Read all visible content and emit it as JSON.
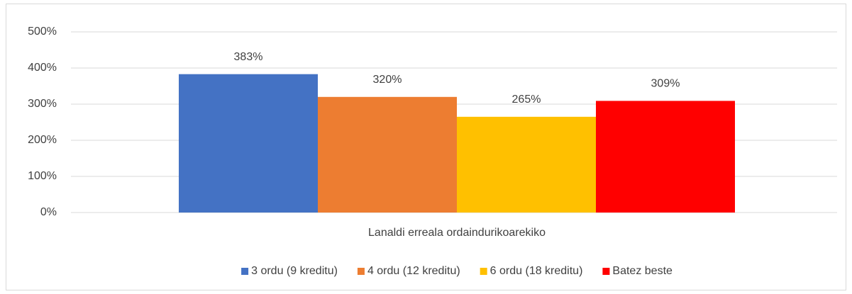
{
  "chart_data": {
    "type": "bar",
    "categories": [
      "Lanaldi erreala ordaindurikoarekiko"
    ],
    "series": [
      {
        "name": "3 ordu (9 kreditu)",
        "color": "#4472c4",
        "values": [
          383
        ],
        "value_labels": [
          "383%"
        ]
      },
      {
        "name": "4 ordu (12 kreditu)",
        "color": "#ed7d31",
        "values": [
          320
        ],
        "value_labels": [
          "320%"
        ]
      },
      {
        "name": "6 ordu (18 kreditu)",
        "color": "#ffc000",
        "values": [
          265
        ],
        "value_labels": [
          "265%"
        ]
      },
      {
        "name": "Batez beste",
        "color": "#ff0000",
        "values": [
          309
        ],
        "value_labels": [
          "309%"
        ]
      }
    ],
    "ylim": [
      0,
      500
    ],
    "yticks": [
      {
        "value": 0,
        "label": "0%"
      },
      {
        "value": 100,
        "label": "100%"
      },
      {
        "value": 200,
        "label": "200%"
      },
      {
        "value": 300,
        "label": "300%"
      },
      {
        "value": 400,
        "label": "400%"
      },
      {
        "value": 500,
        "label": "500%"
      }
    ],
    "grid": true,
    "legend": "bottom"
  }
}
